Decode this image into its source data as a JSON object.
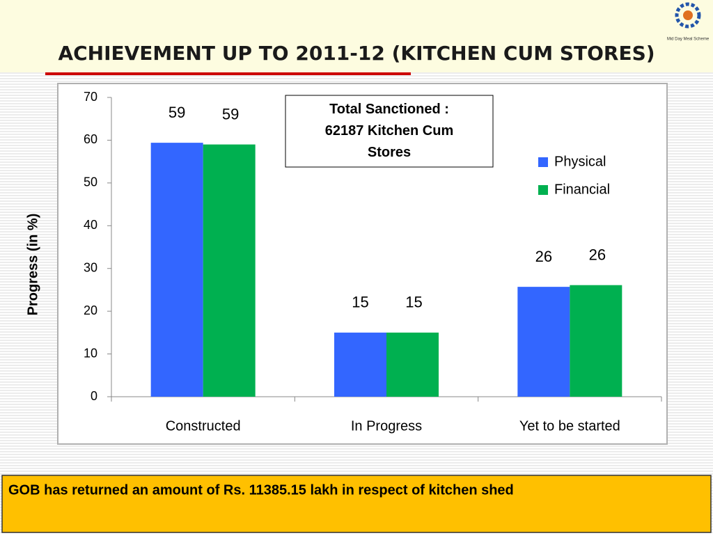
{
  "logo_text": "Mid Day Meal Scheme",
  "footer": "GOB has returned  an amount of Rs. 11385.15 lakh in respect of kitchen shed",
  "chart_data": {
    "type": "bar",
    "title": "ACHIEVEMENT UP TO 2011-12 (KITCHEN CUM STORES)",
    "ylabel": "Progress (in %)",
    "annotation": "Total Sanctioned : 62187 Kitchen Cum Stores",
    "categories": [
      "Constructed",
      "In Progress",
      "Yet to be started"
    ],
    "series": [
      {
        "name": "Physical",
        "color": "#3366ff",
        "values": [
          59.4,
          15,
          25.7
        ],
        "value_labels": [
          "59",
          "15",
          "26"
        ]
      },
      {
        "name": "Financial",
        "color": "#00b050",
        "values": [
          59,
          15,
          26.1
        ],
        "value_labels": [
          "59",
          "15",
          "26"
        ]
      }
    ],
    "ylim": [
      0,
      70
    ],
    "yticks": [
      0,
      10,
      20,
      30,
      40,
      50,
      60,
      70
    ],
    "grid": false,
    "legend": "right"
  }
}
